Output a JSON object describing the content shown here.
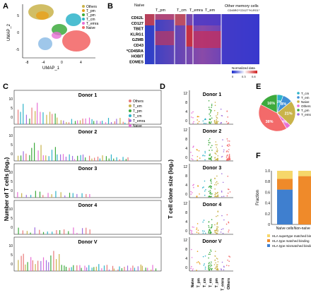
{
  "panels": [
    "A",
    "B",
    "C",
    "D",
    "E",
    "F"
  ],
  "panel_a": {
    "x_label": "UMAP_1",
    "y_label": "UMAP_2",
    "x_ticks": [
      "-8",
      "-4",
      "0",
      "4"
    ],
    "y_ticks": [
      "5",
      "0",
      "-5"
    ],
    "legend": [
      "Others",
      "T_pm",
      "T_pm",
      "T_cm",
      "T_emra",
      "Naive"
    ],
    "colors": [
      "#c9b34a",
      "#e8a01a",
      "#3daa3d",
      "#2db3c9",
      "#e86fd6",
      "#f36a6a"
    ]
  },
  "panel_b": {
    "columns": [
      "Naïve",
      "T_pm",
      "T_cm",
      "T_emra",
      "T_em",
      "Other memory cells"
    ],
    "sub_label": "CD45RO⁺CD127⁺KLRG1⁺",
    "rows": [
      "CD62L",
      "CD127",
      "TBET",
      "KLRG1",
      "GZMB",
      "CD43",
      "*CD45RA",
      "HOBIT",
      "EOMES"
    ],
    "colorbar_title": "Normalized data",
    "colorbar_ticks": [
      "0",
      "0.3",
      "0.8"
    ]
  },
  "panel_c": {
    "y_label": "Number of T cells (log₂)",
    "donors": [
      "Donor 1",
      "Donor 2",
      "Donor 3",
      "Donor 4",
      "Donor V"
    ],
    "y_ticks": [
      "10",
      "5",
      "0"
    ],
    "legend": [
      "Others",
      "T_em",
      "T_pm",
      "T_cm",
      "T_emra",
      "Naive"
    ],
    "legend_colors": [
      "#e87a7a",
      "#c9b34a",
      "#3daa3d",
      "#2db3c9",
      "#a070e0",
      "#e86fd6"
    ]
  },
  "panel_d": {
    "y_label": "T cell clone size (log₂)",
    "donors": [
      "Donor 1",
      "Donor 2",
      "Donor 3",
      "Donor 4",
      "Donor V"
    ],
    "y_ticks": [
      "12",
      "8",
      "4",
      "0"
    ],
    "x_categories": [
      "Naive",
      "T_pm",
      "T_cm",
      "T_em",
      "T_pm",
      "T_emra",
      "Others"
    ]
  },
  "panel_e": {
    "legend": [
      "T_cm",
      "T_em",
      "Naive",
      "Others",
      "T_pm",
      "T_emra"
    ],
    "chart_data": {
      "type": "pie",
      "labels": [
        "5%",
        "8%",
        "21%",
        "4%",
        "38%",
        "16%"
      ],
      "values": [
        5,
        8,
        21,
        4,
        38,
        16
      ],
      "colors": [
        "#2db3c9",
        "#3f8fd6",
        "#c9b34a",
        "#e86fd6",
        "#f36a6a",
        "#3daa3d"
      ]
    }
  },
  "panel_f": {
    "chart_data": {
      "type": "bar",
      "categories": [
        "Naïve cells",
        "Non-naïve cells"
      ],
      "series": [
        {
          "name": "HLA type mismatched binding",
          "values": [
            0.65,
            0.0
          ],
          "color": "#3f7fcf"
        },
        {
          "name": "HLA type matched binding",
          "values": [
            0.2,
            0.9
          ],
          "color": "#ef8a2a"
        },
        {
          "name": "HLA supertype matched binding",
          "values": [
            0.15,
            0.1
          ],
          "color": "#f6d76a"
        }
      ],
      "ylabel": "Fraction",
      "ylim": [
        0,
        1
      ],
      "y_ticks": [
        "1.0",
        "0.8",
        "0.6",
        "0.4",
        "0.2",
        "0"
      ]
    }
  }
}
